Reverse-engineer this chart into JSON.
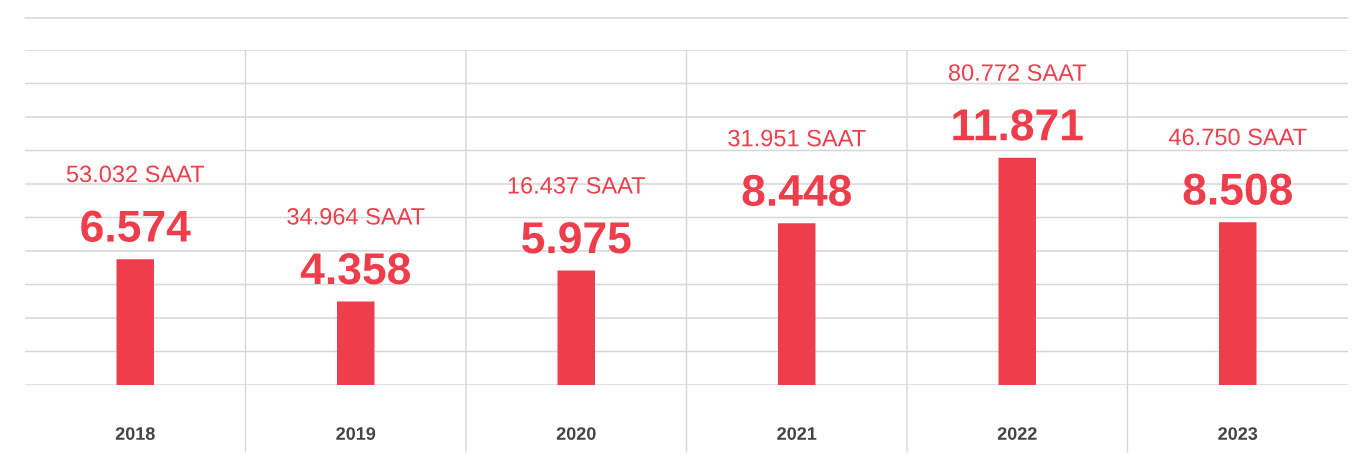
{
  "chart_data": {
    "type": "bar",
    "categories": [
      "2018",
      "2019",
      "2020",
      "2021",
      "2022",
      "2023"
    ],
    "values": [
      6574,
      4358,
      5975,
      8448,
      11871,
      8508
    ],
    "value_labels": [
      "6.574",
      "4.358",
      "5.975",
      "8.448",
      "11.871",
      "8.508"
    ],
    "color": "#ee3e4b",
    "annotations": [
      "53.032 SAAT",
      "34.964 SAAT",
      "16.437 SAAT",
      "31.951 SAAT",
      "80.772 SAAT",
      "46.750 SAAT"
    ],
    "ylim": [
      0,
      17500
    ],
    "yticks": [
      {
        "value": 0,
        "label": null
      },
      {
        "value": 1750,
        "label": null
      },
      {
        "value": 3500,
        "label": null
      },
      {
        "value": 5250,
        "label": null
      },
      {
        "value": 7000,
        "label": null
      },
      {
        "value": 8750,
        "label": null
      },
      {
        "value": 10500,
        "label": null
      },
      {
        "value": 12250,
        "label": null
      },
      {
        "value": 14000,
        "label": null
      },
      {
        "value": 15750,
        "label": null
      },
      {
        "value": 17500,
        "label": null
      }
    ],
    "tick_labels": "x",
    "grid": true,
    "legend": false
  }
}
